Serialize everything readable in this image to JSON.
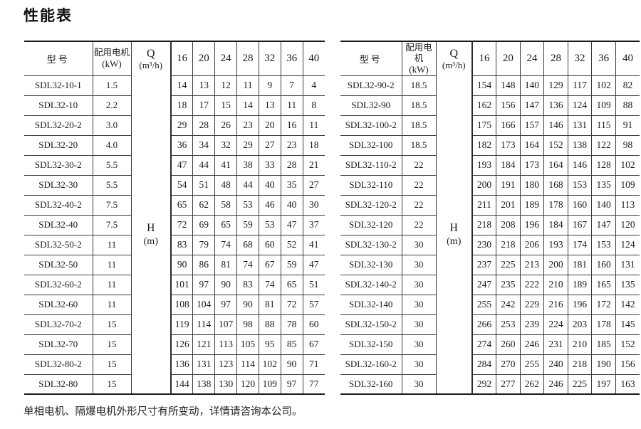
{
  "page": {
    "title": "性能表",
    "footer_note": "单相电机、隔爆电机外形尺寸有所变动，详情请咨询本公司。"
  },
  "table_headers": {
    "model": "型号",
    "motor_label": "配用电机",
    "motor_unit": "(kW)",
    "flow_label": "Q",
    "flow_unit": "(m³/h)",
    "head_label": "H",
    "head_unit": "(m)",
    "flow_values": [
      "16",
      "20",
      "24",
      "28",
      "32",
      "36",
      "40"
    ]
  },
  "left_table": {
    "rows": [
      {
        "model": "SDL32-10-1",
        "kw": "1.5",
        "values": [
          14,
          13,
          12,
          11,
          9,
          7,
          4
        ]
      },
      {
        "model": "SDL32-10",
        "kw": "2.2",
        "values": [
          18,
          17,
          15,
          14,
          13,
          11,
          8
        ]
      },
      {
        "model": "SDL32-20-2",
        "kw": "3.0",
        "values": [
          29,
          28,
          26,
          23,
          20,
          16,
          11
        ]
      },
      {
        "model": "SDL32-20",
        "kw": "4.0",
        "values": [
          36,
          34,
          32,
          29,
          27,
          23,
          18
        ]
      },
      {
        "model": "SDL32-30-2",
        "kw": "5.5",
        "values": [
          47,
          44,
          41,
          38,
          33,
          28,
          21
        ]
      },
      {
        "model": "SDL32-30",
        "kw": "5.5",
        "values": [
          54,
          51,
          48,
          44,
          40,
          35,
          27
        ]
      },
      {
        "model": "SDL32-40-2",
        "kw": "7.5",
        "values": [
          65,
          62,
          58,
          53,
          46,
          40,
          30
        ]
      },
      {
        "model": "SDL32-40",
        "kw": "7.5",
        "values": [
          72,
          69,
          65,
          59,
          53,
          47,
          37
        ]
      },
      {
        "model": "SDL32-50-2",
        "kw": "11",
        "values": [
          83,
          79,
          74,
          68,
          60,
          52,
          41
        ]
      },
      {
        "model": "SDL32-50",
        "kw": "11",
        "values": [
          90,
          86,
          81,
          74,
          67,
          59,
          47
        ]
      },
      {
        "model": "SDL32-60-2",
        "kw": "11",
        "values": [
          101,
          97,
          90,
          83,
          74,
          65,
          51
        ]
      },
      {
        "model": "SDL32-60",
        "kw": "11",
        "values": [
          108,
          104,
          97,
          90,
          81,
          72,
          57
        ]
      },
      {
        "model": "SDL32-70-2",
        "kw": "15",
        "values": [
          119,
          114,
          107,
          98,
          88,
          78,
          60
        ]
      },
      {
        "model": "SDL32-70",
        "kw": "15",
        "values": [
          126,
          121,
          113,
          105,
          95,
          85,
          67
        ]
      },
      {
        "model": "SDL32-80-2",
        "kw": "15",
        "values": [
          136,
          131,
          123,
          114,
          102,
          90,
          71
        ]
      },
      {
        "model": "SDL32-80",
        "kw": "15",
        "values": [
          144,
          138,
          130,
          120,
          109,
          97,
          77
        ]
      }
    ]
  },
  "right_table": {
    "rows": [
      {
        "model": "SDL32-90-2",
        "kw": "18.5",
        "values": [
          154,
          148,
          140,
          129,
          117,
          102,
          82
        ]
      },
      {
        "model": "SDL32-90",
        "kw": "18.5",
        "values": [
          162,
          156,
          147,
          136,
          124,
          109,
          88
        ]
      },
      {
        "model": "SDL32-100-2",
        "kw": "18.5",
        "values": [
          175,
          166,
          157,
          146,
          131,
          115,
          91
        ]
      },
      {
        "model": "SDL32-100",
        "kw": "18.5",
        "values": [
          182,
          173,
          164,
          152,
          138,
          122,
          98
        ]
      },
      {
        "model": "SDL32-110-2",
        "kw": "22",
        "values": [
          193,
          184,
          173,
          164,
          146,
          128,
          102
        ]
      },
      {
        "model": "SDL32-110",
        "kw": "22",
        "values": [
          200,
          191,
          180,
          168,
          153,
          135,
          109
        ]
      },
      {
        "model": "SDL32-120-2",
        "kw": "22",
        "values": [
          211,
          201,
          189,
          178,
          160,
          140,
          113
        ]
      },
      {
        "model": "SDL32-120",
        "kw": "22",
        "values": [
          218,
          208,
          196,
          184,
          167,
          147,
          120
        ]
      },
      {
        "model": "SDL32-130-2",
        "kw": "30",
        "values": [
          230,
          218,
          206,
          193,
          174,
          153,
          124
        ]
      },
      {
        "model": "SDL32-130",
        "kw": "30",
        "values": [
          237,
          225,
          213,
          200,
          181,
          160,
          131
        ]
      },
      {
        "model": "SDL32-140-2",
        "kw": "30",
        "values": [
          247,
          235,
          222,
          210,
          189,
          165,
          135
        ]
      },
      {
        "model": "SDL32-140",
        "kw": "30",
        "values": [
          255,
          242,
          229,
          216,
          196,
          172,
          142
        ]
      },
      {
        "model": "SDL32-150-2",
        "kw": "30",
        "values": [
          266,
          253,
          239,
          224,
          203,
          178,
          145
        ]
      },
      {
        "model": "SDL32-150",
        "kw": "30",
        "values": [
          274,
          260,
          246,
          231,
          210,
          185,
          152
        ]
      },
      {
        "model": "SDL32-160-2",
        "kw": "30",
        "values": [
          284,
          270,
          255,
          240,
          218,
          190,
          156
        ]
      },
      {
        "model": "SDL32-160",
        "kw": "30",
        "values": [
          292,
          277,
          262,
          246,
          225,
          197,
          163
        ]
      }
    ]
  }
}
